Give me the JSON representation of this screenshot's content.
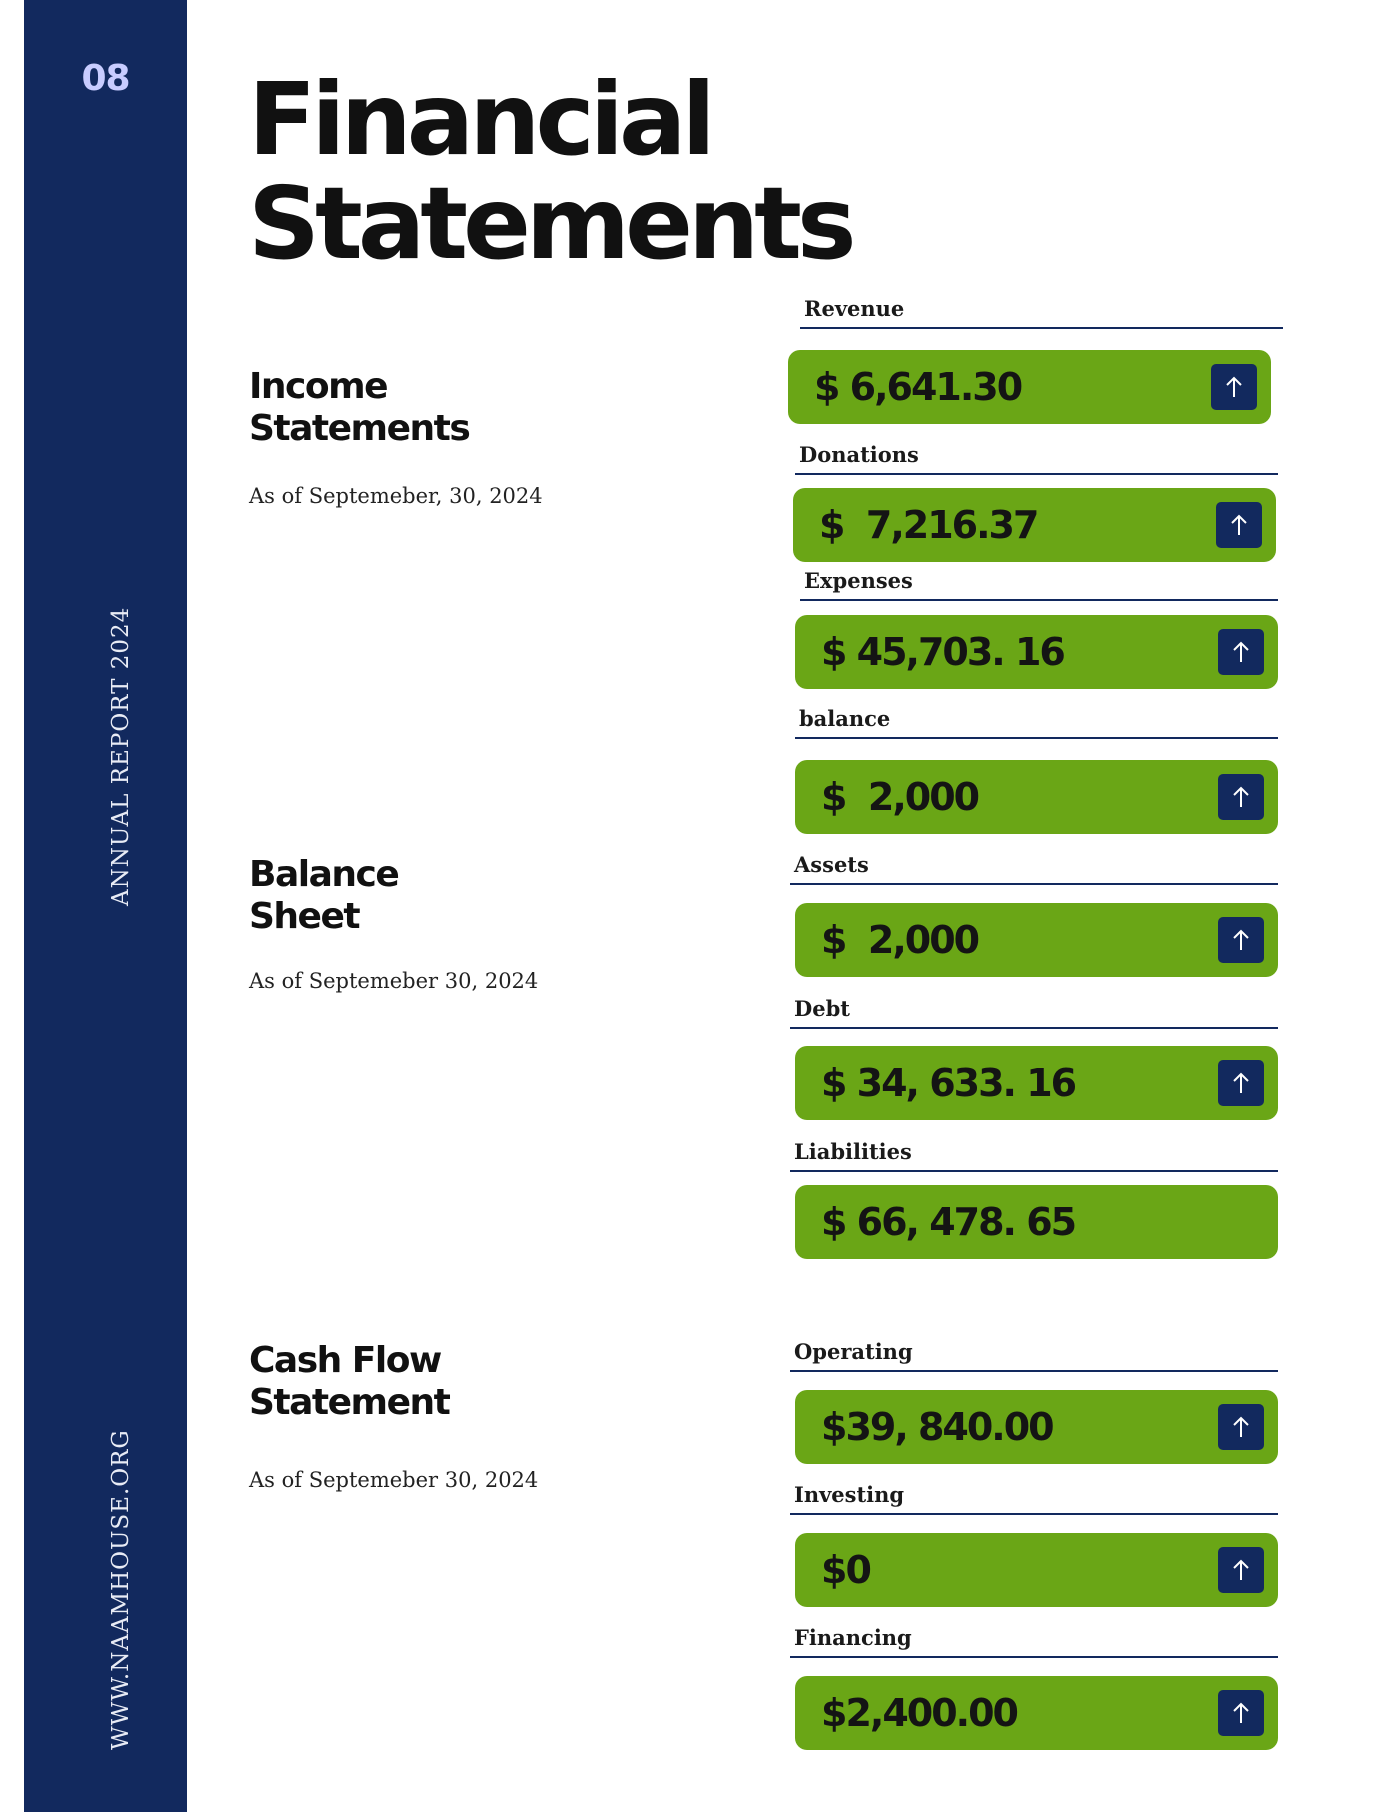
{
  "page_number": "08",
  "sidebar": {
    "report_label": "ANNUAL REPORT 2024",
    "website": "WWW.NAAMHOUSE.ORG"
  },
  "title": {
    "line1": "Financial",
    "line2": "Statements"
  },
  "sections": {
    "income": {
      "title_line1": "Income",
      "title_line2": "Statements",
      "date": "As of Septemeber, 30, 2024"
    },
    "balance": {
      "title_line1": "Balance",
      "title_line2": "Sheet",
      "date": "As of Septemeber 30, 2024"
    },
    "cashflow": {
      "title_line1": "Cash Flow",
      "title_line2": "Statement",
      "date": "As of Septemeber 30, 2024"
    }
  },
  "metrics": {
    "revenue": {
      "label": "Revenue",
      "value": "$ 6,641.30",
      "icon": "arrow-up-icon"
    },
    "donations": {
      "label": "Donations",
      "value": "$  7,216.37",
      "icon": "arrow-up-icon"
    },
    "expenses": {
      "label": "Expenses",
      "value": "$ 45,703. 16",
      "icon": "arrow-up-icon"
    },
    "balance": {
      "label": "balance",
      "value": "$  2,000",
      "icon": "arrow-up-icon"
    },
    "assets": {
      "label": "Assets",
      "value": "$  2,000",
      "icon": "arrow-up-icon"
    },
    "debt": {
      "label": "Debt",
      "value": "$ 34, 633. 16",
      "icon": "arrow-up-icon"
    },
    "liabilities": {
      "label": "Liabilities",
      "value": "$ 66, 478. 65"
    },
    "operating": {
      "label": "Operating",
      "value": "$39, 840.00",
      "icon": "arrow-up-icon"
    },
    "investing": {
      "label": "Investing",
      "value": "$0",
      "icon": "arrow-up-icon"
    },
    "financing": {
      "label": "Financing",
      "value": "$2,400.00",
      "icon": "arrow-up-icon"
    }
  },
  "colors": {
    "sidebar": "#12295e",
    "card": "#6aa616",
    "accent": "#c8ccff"
  }
}
